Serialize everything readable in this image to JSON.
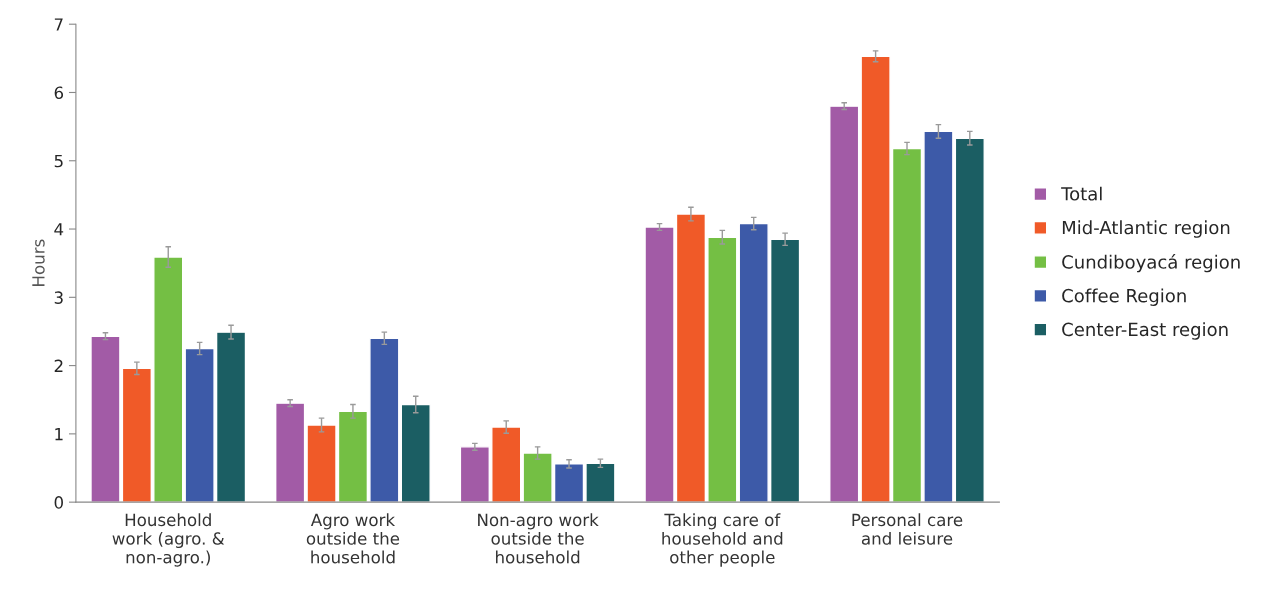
{
  "chart_data": {
    "type": "bar",
    "ylabel": "Hours",
    "categories": [
      "Household\nwork (agro. &\nnon-agro.)",
      "Agro work\noutside the\nhousehold",
      "Non-agro work\noutside the\nhousehold",
      "Taking care of\nhousehold and\nother people",
      "Personal care\nand leisure"
    ],
    "series": [
      {
        "name": "Total",
        "color": "#a25ba6",
        "values": [
          2.43,
          1.45,
          0.81,
          4.03,
          5.8
        ],
        "errors": [
          0.05,
          0.05,
          0.05,
          0.05,
          0.05
        ]
      },
      {
        "name": "Mid-Atlantic region",
        "color": "#f05a28",
        "values": [
          1.96,
          1.13,
          1.1,
          4.22,
          6.53
        ],
        "errors": [
          0.09,
          0.1,
          0.09,
          0.1,
          0.08
        ]
      },
      {
        "name": "Cundiboyacá region",
        "color": "#74bf44",
        "values": [
          3.59,
          1.33,
          0.72,
          3.88,
          5.18
        ],
        "errors": [
          0.15,
          0.1,
          0.09,
          0.1,
          0.09
        ]
      },
      {
        "name": "Coffee Region",
        "color": "#3d5aa8",
        "values": [
          2.25,
          2.4,
          0.56,
          4.08,
          5.43
        ],
        "errors": [
          0.09,
          0.09,
          0.06,
          0.09,
          0.1
        ]
      },
      {
        "name": "Center-East region",
        "color": "#1b5e63",
        "values": [
          2.49,
          1.43,
          0.57,
          3.85,
          5.33
        ],
        "errors": [
          0.1,
          0.12,
          0.06,
          0.09,
          0.1
        ]
      }
    ],
    "ylim": [
      0,
      7
    ],
    "yticks": [
      0,
      1,
      2,
      3,
      4,
      5,
      6,
      7
    ],
    "grid": false,
    "legend": "right"
  }
}
